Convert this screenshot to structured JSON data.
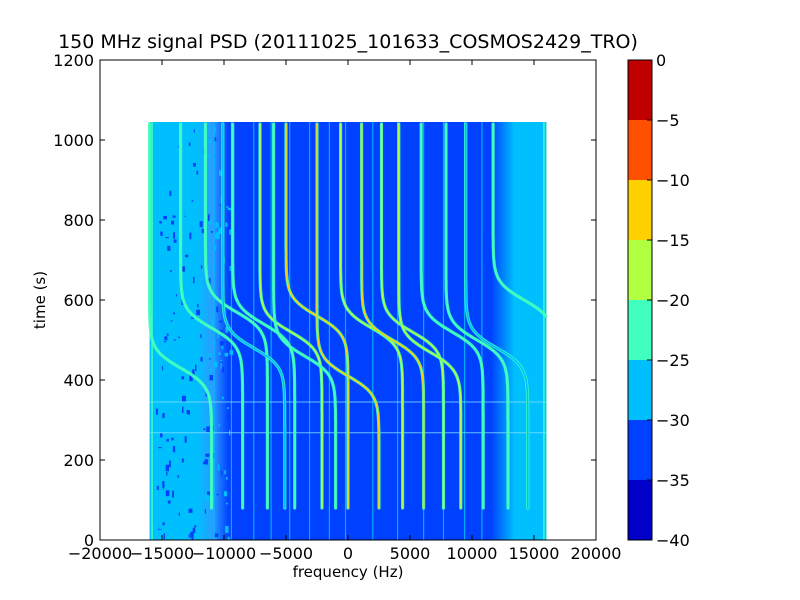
{
  "chart_data": {
    "type": "heatmap",
    "title": "150 MHz signal PSD (20111025_101633_COSMOS2429_TRO)",
    "xlabel": "frequency (Hz)",
    "ylabel": "time (s)",
    "xlim": [
      -20000,
      20000
    ],
    "ylim": [
      0,
      1200
    ],
    "xticks": [
      -20000,
      -15000,
      -10000,
      -5000,
      0,
      5000,
      10000,
      15000,
      20000
    ],
    "yticks": [
      0,
      200,
      400,
      600,
      800,
      1000,
      1200
    ],
    "data_extent": {
      "x": [
        -16000,
        16000
      ],
      "y": [
        0,
        1045
      ]
    },
    "colorbar": {
      "levels": [
        -40,
        -35,
        -30,
        -25,
        -20,
        -15,
        -10,
        -5,
        0
      ],
      "colors": [
        "#0000c8",
        "#0040ff",
        "#00bfff",
        "#40ffbf",
        "#b0ff40",
        "#ffd000",
        "#ff5000",
        "#c00000"
      ]
    },
    "traces": [
      {
        "f_center": -13500,
        "t_center": 430,
        "half_span": 2500,
        "rate": 0.022,
        "level": -20
      },
      {
        "f_center": -11000,
        "t_center": 530,
        "half_span": 2500,
        "rate": 0.022,
        "level": -22
      },
      {
        "f_center": -9000,
        "t_center": 570,
        "half_span": 2500,
        "rate": 0.022,
        "level": -22
      },
      {
        "f_center": -7600,
        "t_center": 480,
        "half_span": 2500,
        "rate": 0.022,
        "level": -25
      },
      {
        "f_center": -6800,
        "t_center": 540,
        "half_span": 2500,
        "rate": 0.022,
        "level": -22
      },
      {
        "f_center": -4600,
        "t_center": 520,
        "half_span": 2500,
        "rate": 0.022,
        "level": -15
      },
      {
        "f_center": -3500,
        "t_center": 460,
        "half_span": 2500,
        "rate": 0.022,
        "level": -20
      },
      {
        "f_center": -2500,
        "t_center": 560,
        "half_span": 2500,
        "rate": 0.022,
        "level": -10
      },
      {
        "f_center": 0,
        "t_center": 410,
        "half_span": 2500,
        "rate": 0.022,
        "level": -10
      },
      {
        "f_center": 1900,
        "t_center": 530,
        "half_span": 2500,
        "rate": 0.022,
        "level": -15
      },
      {
        "f_center": 3600,
        "t_center": 500,
        "half_span": 2500,
        "rate": 0.022,
        "level": -10
      },
      {
        "f_center": 5200,
        "t_center": 520,
        "half_span": 2500,
        "rate": 0.022,
        "level": -15
      },
      {
        "f_center": 6600,
        "t_center": 470,
        "half_span": 2500,
        "rate": 0.022,
        "level": -15
      },
      {
        "f_center": 8400,
        "t_center": 520,
        "half_span": 2500,
        "rate": 0.022,
        "level": -22
      },
      {
        "f_center": 10400,
        "t_center": 500,
        "half_span": 2500,
        "rate": 0.022,
        "level": -22
      },
      {
        "f_center": 12000,
        "t_center": 480,
        "half_span": 2500,
        "rate": 0.022,
        "level": -25
      },
      {
        "f_center": 14200,
        "t_center": 600,
        "half_span": 2500,
        "rate": 0.022,
        "level": -20
      }
    ],
    "vertical_lines": [
      -15700,
      -10800,
      -9400,
      -7600,
      -6200,
      -4700,
      -3100,
      -1500,
      -200,
      2000,
      4000,
      6100,
      7700,
      9400,
      10800,
      13600,
      15000
    ],
    "horizontal_lines": [
      268,
      345
    ]
  }
}
